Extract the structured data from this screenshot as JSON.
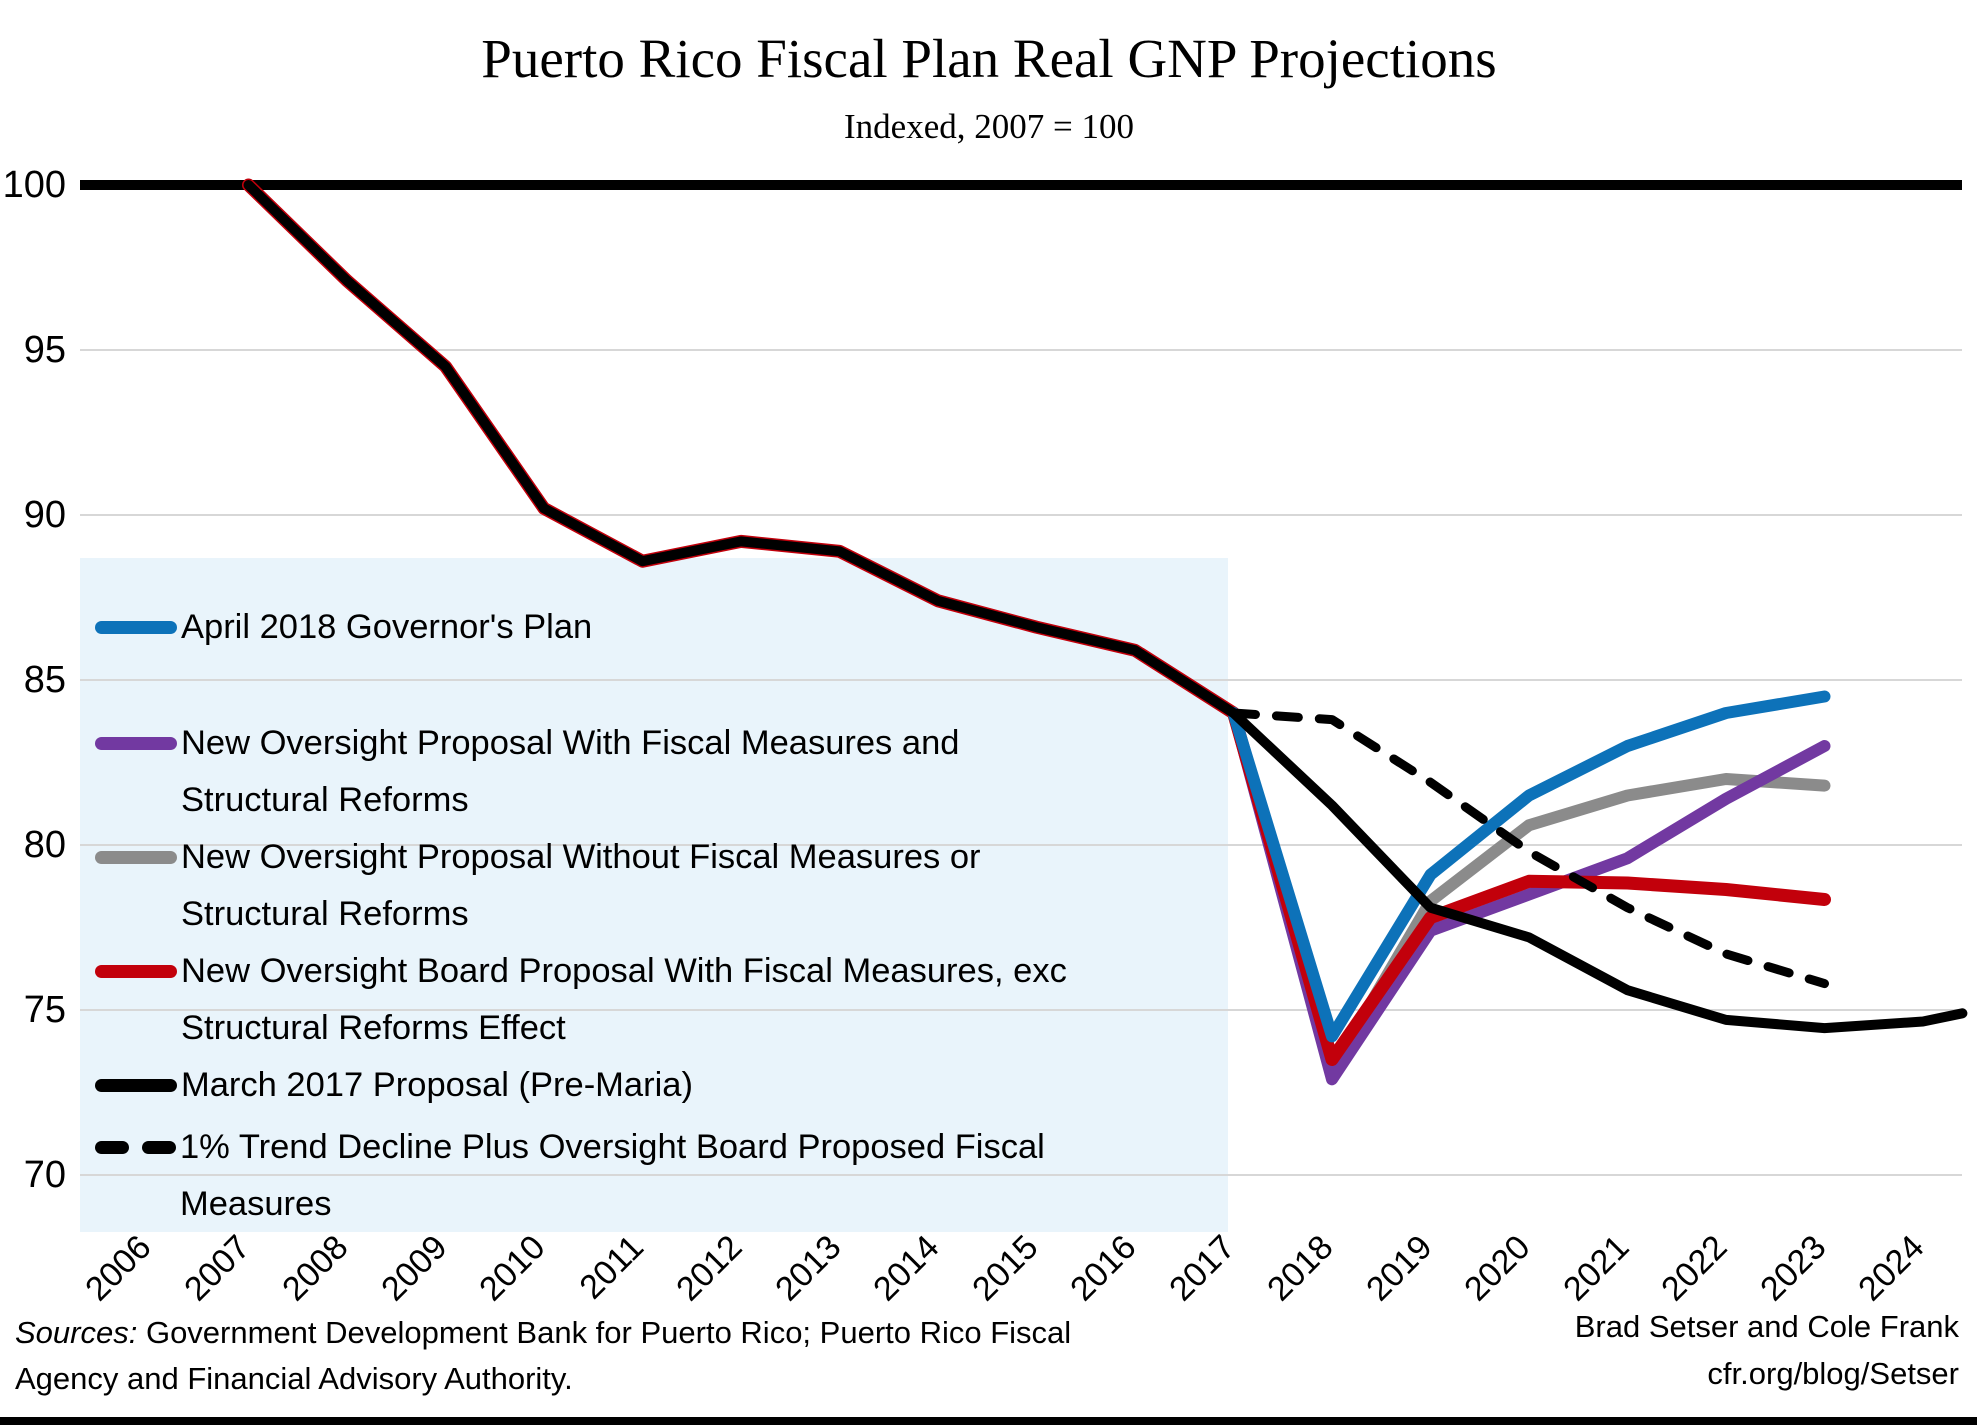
{
  "title": "Puerto Rico Fiscal Plan Real GNP Projections",
  "subtitle": "Indexed, 2007 = 100",
  "y_axis": {
    "ticks": [
      100,
      95,
      90,
      85,
      80,
      75,
      70
    ]
  },
  "x_axis": {
    "ticks": [
      2006,
      2007,
      2008,
      2009,
      2010,
      2011,
      2012,
      2013,
      2014,
      2015,
      2016,
      2017,
      2018,
      2019,
      2020,
      2021,
      2022,
      2023,
      2024
    ]
  },
  "legend": {
    "items": [
      {
        "key": "blue",
        "color": "#0d72b9",
        "dashed": false,
        "lines": [
          "April 2018 Governor's Plan",
          ""
        ]
      },
      {
        "key": "purple",
        "color": "#7239a1",
        "dashed": false,
        "lines": [
          "New Oversight Proposal With Fiscal Measures and",
          "Structural Reforms"
        ]
      },
      {
        "key": "gray",
        "color": "#8b8b8b",
        "dashed": false,
        "lines": [
          "New Oversight Proposal Without Fiscal Measures or",
          "Structural Reforms"
        ]
      },
      {
        "key": "red",
        "color": "#c2000b",
        "dashed": false,
        "lines": [
          "New Oversight Board Proposal With Fiscal Measures, exc",
          "Structural Reforms Effect"
        ]
      },
      {
        "key": "black",
        "color": "#000000",
        "dashed": false,
        "lines": [
          "March 2017 Proposal (Pre-Maria)",
          ""
        ]
      },
      {
        "key": "dashed",
        "color": "#000000",
        "dashed": true,
        "lines": [
          "1% Trend Decline Plus Oversight Board Proposed Fiscal",
          "Measures"
        ]
      }
    ]
  },
  "chart_data": {
    "type": "line",
    "title": "Puerto Rico Fiscal Plan Real GNP Projections",
    "subtitle": "Indexed, 2007 = 100",
    "xlabel": "",
    "ylabel": "",
    "ylim": [
      70,
      100
    ],
    "xlim": [
      2006,
      2024.5
    ],
    "grid": true,
    "gridline_color": "#d7d7d7",
    "reference_line": {
      "value": 100,
      "color": "#000000"
    },
    "legend_position": "upper-left-inside",
    "series": [
      {
        "key": "gray",
        "name": "New Oversight Proposal Without Fiscal Measures or Structural Reforms",
        "color": "#8b8b8b",
        "dashed": false,
        "points": [
          [
            2017,
            84
          ],
          [
            2018,
            73.2
          ],
          [
            2019,
            78.3
          ],
          [
            2020,
            80.6
          ],
          [
            2021,
            81.5
          ],
          [
            2022,
            82.0
          ],
          [
            2023,
            81.8
          ]
        ]
      },
      {
        "key": "purple",
        "name": "New Oversight Proposal With Fiscal Measures and Structural Reforms",
        "color": "#7239a1",
        "dashed": false,
        "points": [
          [
            2017,
            84
          ],
          [
            2018,
            72.9
          ],
          [
            2019,
            77.4
          ],
          [
            2020,
            78.5
          ],
          [
            2021,
            79.6
          ],
          [
            2022,
            81.4
          ],
          [
            2023,
            83.0
          ]
        ]
      },
      {
        "key": "red",
        "name": "New Oversight Board Proposal With Fiscal Measures, exc Structural Reforms Effect",
        "color": "#c2000b",
        "dashed": false,
        "points": [
          [
            2007,
            100
          ],
          [
            2008,
            97.1
          ],
          [
            2009,
            94.5
          ],
          [
            2010,
            90.2
          ],
          [
            2011,
            88.6
          ],
          [
            2012,
            89.2
          ],
          [
            2013,
            88.9
          ],
          [
            2014,
            87.4
          ],
          [
            2015,
            86.6
          ],
          [
            2016,
            85.9
          ],
          [
            2017,
            84
          ],
          [
            2018,
            73.5
          ],
          [
            2019,
            77.8
          ],
          [
            2020,
            78.9
          ],
          [
            2021,
            78.85
          ],
          [
            2022,
            78.65
          ],
          [
            2023,
            78.35
          ]
        ]
      },
      {
        "key": "blue",
        "name": "April 2018 Governor's Plan",
        "color": "#0d72b9",
        "dashed": false,
        "points": [
          [
            2017,
            84
          ],
          [
            2018,
            74.2
          ],
          [
            2019,
            79.1
          ],
          [
            2020,
            81.5
          ],
          [
            2021,
            83.0
          ],
          [
            2022,
            84.0
          ],
          [
            2023,
            84.5
          ]
        ]
      },
      {
        "key": "black",
        "name": "March 2017 Proposal (Pre-Maria)",
        "color": "#000000",
        "dashed": false,
        "points": [
          [
            2007,
            100
          ],
          [
            2008,
            97.1
          ],
          [
            2009,
            94.5
          ],
          [
            2010,
            90.2
          ],
          [
            2011,
            88.6
          ],
          [
            2012,
            89.2
          ],
          [
            2013,
            88.9
          ],
          [
            2014,
            87.4
          ],
          [
            2015,
            86.6
          ],
          [
            2016,
            85.9
          ],
          [
            2017,
            84
          ],
          [
            2018,
            81.2
          ],
          [
            2019,
            78.1
          ],
          [
            2020,
            77.2
          ],
          [
            2021,
            75.6
          ],
          [
            2022,
            74.7
          ],
          [
            2023,
            74.45
          ],
          [
            2024,
            74.65
          ],
          [
            2024.4,
            74.9
          ]
        ]
      },
      {
        "key": "dashed",
        "name": "1% Trend Decline Plus Oversight Board Proposed Fiscal Measures",
        "color": "#000000",
        "dashed": true,
        "points": [
          [
            2017,
            84
          ],
          [
            2018,
            83.8
          ],
          [
            2019,
            81.9
          ],
          [
            2020,
            79.8
          ],
          [
            2021,
            78.1
          ],
          [
            2022,
            76.7
          ],
          [
            2023,
            75.8
          ]
        ]
      }
    ]
  },
  "footer": {
    "sources_label": "Sources:",
    "sources_rest": " Government Development Bank for Puerto Rico; Puerto Rico Fiscal",
    "sources_line2": " Agency and Financial Advisory Authority.",
    "credit_line1": "Brad Setser and Cole Frank",
    "credit_line2": "cfr.org/blog/Setser"
  }
}
